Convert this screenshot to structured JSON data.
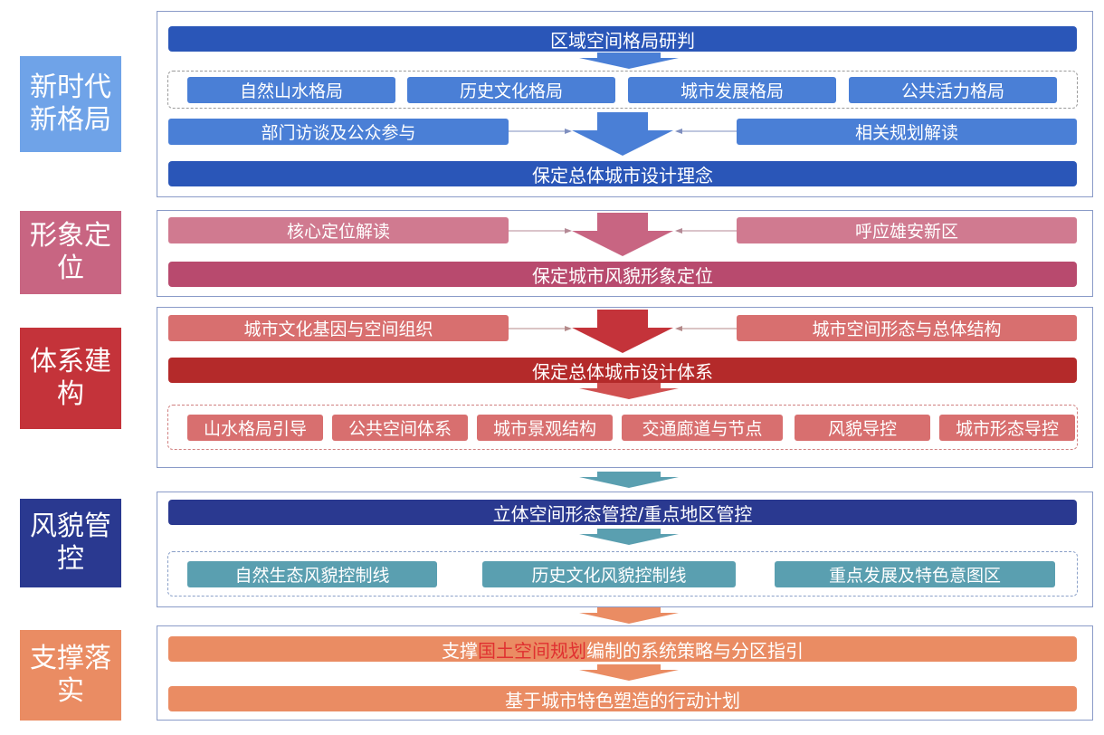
{
  "sections": {
    "s1": {
      "label": "新时代新格局",
      "top": "区域空间格局研判",
      "pills": [
        "自然山水格局",
        "历史文化格局",
        "城市发展格局",
        "公共活力格局"
      ],
      "left": "部门访谈及公众参与",
      "right": "相关规划解读",
      "result": "保定总体城市设计理念"
    },
    "s2": {
      "label": "形象定位",
      "left": "核心定位解读",
      "right": "呼应雄安新区",
      "result": "保定城市风貌形象定位"
    },
    "s3": {
      "label": "体系建构",
      "left": "城市文化基因与空间组织",
      "right": "城市空间形态与总体结构",
      "result": "保定总体城市设计体系",
      "pills": [
        "山水格局引导",
        "公共空间体系",
        "城市景观结构",
        "交通廊道与节点",
        "风貌导控",
        "城市形态导控"
      ]
    },
    "s4": {
      "label": "风貌管控",
      "top": "立体空间形态管控/重点地区管控",
      "pills": [
        "自然生态风貌控制线",
        "历史文化风貌控制线",
        "重点发展及特色意图区"
      ]
    },
    "s5": {
      "label": "支撑落实",
      "line1_pre": "支撑",
      "line1_highlight": "国土空间规划",
      "line1_post": "编制的系统策略与分区指引",
      "line2": "基于城市特色塑造的行动计划"
    }
  },
  "colors": {
    "blue_dark": "#2a56b8",
    "blue_mid": "#4a7fd6",
    "pink": "#c86582",
    "red": "#c4333a",
    "navy": "#2a3990",
    "teal": "#5a9fb0",
    "orange": "#ea8c63"
  }
}
